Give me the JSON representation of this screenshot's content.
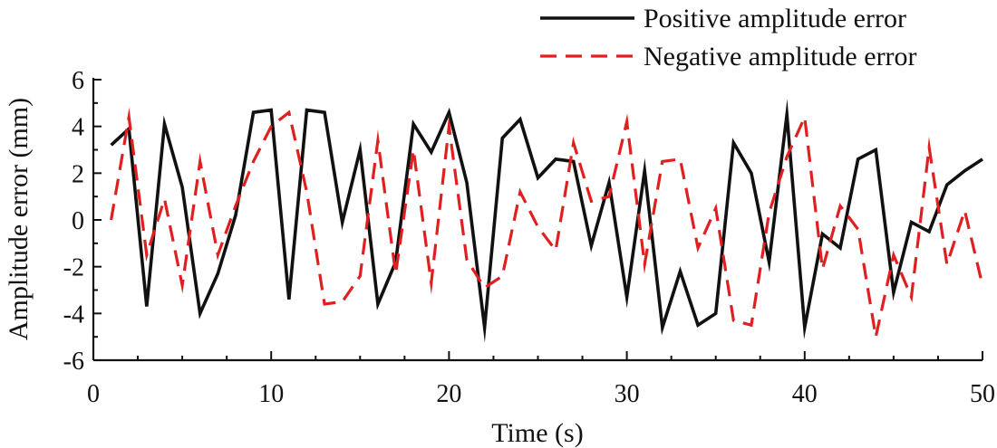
{
  "chart_data": {
    "type": "line",
    "title": "",
    "xlabel": "Time (s)",
    "ylabel": "Amplitude error (mm)",
    "xlim": [
      0,
      50
    ],
    "ylim": [
      -6,
      6
    ],
    "xticks": [
      0,
      10,
      20,
      30,
      40,
      50
    ],
    "yticks": [
      -6,
      -4,
      -2,
      0,
      2,
      4,
      6
    ],
    "legend_position": "top-right",
    "grid": false,
    "series": [
      {
        "name": "Positive amplitude error",
        "color": "#111111",
        "dash": "solid",
        "x": [
          1,
          2,
          3,
          4,
          5,
          6,
          7,
          8,
          9,
          10,
          11,
          12,
          13,
          14,
          15,
          16,
          17,
          18,
          19,
          20,
          21,
          22,
          23,
          24,
          25,
          26,
          27,
          28,
          29,
          30,
          31,
          32,
          33,
          34,
          35,
          36,
          37,
          38,
          39,
          40,
          41,
          42,
          43,
          44,
          45,
          46,
          47,
          48,
          49,
          50
        ],
        "values": [
          3.2,
          3.9,
          -3.7,
          4.1,
          1.4,
          -4.0,
          -2.3,
          0.2,
          4.6,
          4.7,
          -3.4,
          4.7,
          4.6,
          -0.1,
          3.0,
          -3.6,
          -1.8,
          4.1,
          2.9,
          4.6,
          1.6,
          -4.6,
          3.5,
          4.3,
          1.8,
          2.6,
          2.5,
          -1.1,
          1.6,
          -3.3,
          2.1,
          -4.6,
          -2.2,
          -4.5,
          -4.0,
          3.3,
          2.0,
          -1.8,
          4.5,
          -4.6,
          -0.6,
          -1.2,
          2.6,
          3.0,
          -3.1,
          -0.1,
          -0.5,
          1.5,
          2.1,
          2.6
        ]
      },
      {
        "name": "Negative amplitude error",
        "color": "#e02020",
        "dash": "dashed",
        "x": [
          1,
          2,
          3,
          4,
          5,
          6,
          7,
          8,
          9,
          10,
          11,
          12,
          13,
          14,
          15,
          16,
          17,
          18,
          19,
          20,
          21,
          22,
          23,
          24,
          25,
          26,
          27,
          28,
          29,
          30,
          31,
          32,
          33,
          34,
          35,
          36,
          37,
          38,
          39,
          40,
          41,
          42,
          43,
          44,
          45,
          46,
          47,
          48,
          49,
          50
        ],
        "values": [
          0.0,
          4.4,
          -1.5,
          0.9,
          -2.8,
          2.5,
          -1.5,
          0.6,
          2.5,
          4.0,
          4.6,
          1.2,
          -3.6,
          -3.5,
          -2.4,
          3.4,
          -2.3,
          3.0,
          -2.7,
          4.0,
          -1.7,
          -2.9,
          -2.4,
          1.2,
          -0.3,
          -1.3,
          3.3,
          0.8,
          1.0,
          4.2,
          -1.9,
          2.5,
          2.6,
          -1.2,
          0.5,
          -4.3,
          -4.5,
          0.3,
          2.7,
          4.4,
          -2.1,
          0.6,
          -0.4,
          -5.0,
          -1.5,
          -3.3,
          3.1,
          -1.9,
          0.4,
          -2.8
        ]
      }
    ]
  }
}
